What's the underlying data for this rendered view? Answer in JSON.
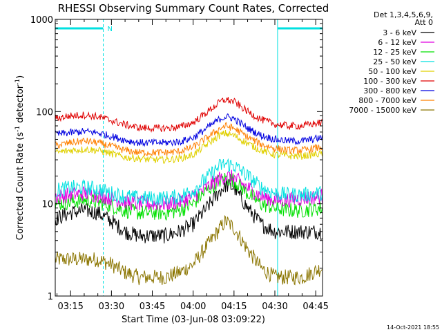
{
  "chart_data": {
    "type": "line",
    "title": "RHESSI Observing Summary Count Rates, Corrected",
    "ylabel_parts": [
      "Corrected Count Rate (s",
      "-1",
      " detector",
      "-1",
      ")"
    ],
    "xlabel": "Start Time (03-Jun-08 03:09:22)",
    "y_scale": "log",
    "ylim": [
      1,
      1000
    ],
    "y_ticks": [
      "1",
      "10",
      "100",
      "1000"
    ],
    "x_range_minutes": [
      "03:09:22",
      "04:47:30"
    ],
    "x_ticks": [
      "03:15",
      "03:30",
      "03:45",
      "04:00",
      "04:15",
      "04:30",
      "04:45"
    ],
    "legend_header": [
      "Det 1,3,4,5,6,9,",
      "Att 0"
    ],
    "legend_position": "top-right",
    "footer_date": "14-Oct-2021 18:55",
    "night_marker": "N",
    "night_intervals": [
      [
        "03:09:22",
        "03:27:00"
      ],
      [
        "04:31:00",
        "04:47:30"
      ]
    ],
    "series": [
      {
        "name": "3 - 6 keV",
        "color": "#000000",
        "x": [
          "03:10",
          "03:15",
          "03:20",
          "03:25",
          "03:30",
          "03:35",
          "03:40",
          "03:45",
          "03:50",
          "03:55",
          "04:00",
          "04:05",
          "04:10",
          "04:12",
          "04:15",
          "04:20",
          "04:25",
          "04:30",
          "04:35",
          "04:40",
          "04:47"
        ],
        "values": [
          7,
          8,
          8.5,
          8,
          6.5,
          5,
          4.5,
          4.5,
          4.5,
          5,
          6,
          9,
          14,
          16,
          15,
          9,
          6,
          5,
          5,
          5,
          5
        ]
      },
      {
        "name": "6 - 12 keV",
        "color": "#e000e0",
        "x": [
          "03:10",
          "03:15",
          "03:20",
          "03:25",
          "03:30",
          "03:35",
          "03:40",
          "03:45",
          "03:50",
          "03:55",
          "04:00",
          "04:05",
          "04:10",
          "04:12",
          "04:15",
          "04:20",
          "04:25",
          "04:30",
          "04:35",
          "04:40",
          "04:47"
        ],
        "values": [
          12,
          12.5,
          13,
          12.5,
          11.5,
          10.5,
          10,
          10,
          10,
          10.5,
          12,
          15,
          19,
          20,
          19,
          15,
          12,
          11,
          11,
          11.5,
          12
        ]
      },
      {
        "name": "12 - 25 keV",
        "color": "#00e000",
        "x": [
          "03:10",
          "03:15",
          "03:20",
          "03:25",
          "03:30",
          "03:35",
          "03:40",
          "03:45",
          "03:50",
          "03:55",
          "04:00",
          "04:05",
          "04:10",
          "04:12",
          "04:15",
          "04:20",
          "04:25",
          "04:30",
          "04:35",
          "04:40",
          "04:47"
        ],
        "values": [
          10,
          10.5,
          11,
          10.5,
          9.5,
          8.5,
          8,
          8,
          8,
          8.5,
          10,
          14,
          18,
          19,
          18,
          13,
          10,
          9,
          8.5,
          8.5,
          9
        ]
      },
      {
        "name": "25 - 50 keV",
        "color": "#00e0e0",
        "x": [
          "03:10",
          "03:15",
          "03:20",
          "03:25",
          "03:30",
          "03:35",
          "03:40",
          "03:45",
          "03:50",
          "03:55",
          "04:00",
          "04:05",
          "04:10",
          "04:12",
          "04:15",
          "04:20",
          "04:25",
          "04:30",
          "04:35",
          "04:40",
          "04:47"
        ],
        "values": [
          14,
          15,
          15,
          14.5,
          13,
          12,
          11.5,
          11.5,
          11.5,
          12,
          14,
          19,
          26,
          27,
          26,
          20,
          15,
          13,
          12.5,
          12.5,
          13
        ]
      },
      {
        "name": "50 - 100 keV",
        "color": "#e0d000",
        "x": [
          "03:10",
          "03:15",
          "03:20",
          "03:25",
          "03:30",
          "03:35",
          "03:40",
          "03:45",
          "03:50",
          "03:55",
          "04:00",
          "04:05",
          "04:10",
          "04:12",
          "04:15",
          "04:20",
          "04:25",
          "04:30",
          "04:35",
          "04:40",
          "04:47"
        ],
        "values": [
          36,
          38,
          39,
          38,
          35,
          32,
          31,
          30,
          30,
          31,
          34,
          44,
          56,
          58,
          55,
          45,
          38,
          34,
          33,
          33,
          35
        ]
      },
      {
        "name": "100 - 300 keV",
        "color": "#e00000",
        "x": [
          "03:10",
          "03:15",
          "03:20",
          "03:25",
          "03:30",
          "03:35",
          "03:40",
          "03:45",
          "03:50",
          "03:55",
          "04:00",
          "04:05",
          "04:10",
          "04:12",
          "04:15",
          "04:20",
          "04:25",
          "04:30",
          "04:35",
          "04:40",
          "04:47"
        ],
        "values": [
          85,
          90,
          92,
          88,
          80,
          72,
          67,
          66,
          66,
          68,
          76,
          98,
          128,
          135,
          128,
          100,
          82,
          73,
          70,
          70,
          76
        ]
      },
      {
        "name": "300 - 800 keV",
        "color": "#0000e0",
        "x": [
          "03:10",
          "03:15",
          "03:20",
          "03:25",
          "03:30",
          "03:35",
          "03:40",
          "03:45",
          "03:50",
          "03:55",
          "04:00",
          "04:05",
          "04:10",
          "04:12",
          "04:15",
          "04:20",
          "04:25",
          "04:30",
          "04:35",
          "04:40",
          "04:47"
        ],
        "values": [
          57,
          59,
          61,
          59,
          54,
          49,
          46,
          46,
          46,
          47,
          52,
          66,
          84,
          88,
          84,
          66,
          55,
          50,
          48,
          48,
          52
        ]
      },
      {
        "name": "800 - 7000 keV",
        "color": "#ff8000",
        "x": [
          "03:10",
          "03:15",
          "03:20",
          "03:25",
          "03:30",
          "03:35",
          "03:40",
          "03:45",
          "03:50",
          "03:55",
          "04:00",
          "04:05",
          "04:10",
          "04:12",
          "04:15",
          "04:20",
          "04:25",
          "04:30",
          "04:35",
          "04:40",
          "04:47"
        ],
        "values": [
          43,
          46,
          48,
          46,
          42,
          38,
          36,
          36,
          36,
          37,
          41,
          52,
          66,
          70,
          66,
          53,
          44,
          40,
          38,
          38,
          41
        ]
      },
      {
        "name": "7000 - 15000 keV",
        "color": "#8b7500",
        "x": [
          "03:10",
          "03:15",
          "03:20",
          "03:25",
          "03:30",
          "03:35",
          "03:40",
          "03:45",
          "03:50",
          "03:55",
          "04:00",
          "04:05",
          "04:10",
          "04:12",
          "04:15",
          "04:20",
          "04:25",
          "04:30",
          "04:35",
          "04:40",
          "04:47"
        ],
        "values": [
          2.5,
          2.5,
          2.5,
          2.5,
          2.2,
          1.8,
          1.6,
          1.6,
          1.6,
          1.8,
          2.2,
          3.5,
          5.5,
          6.5,
          5.5,
          3.2,
          2,
          1.6,
          1.6,
          1.6,
          2
        ]
      }
    ]
  }
}
